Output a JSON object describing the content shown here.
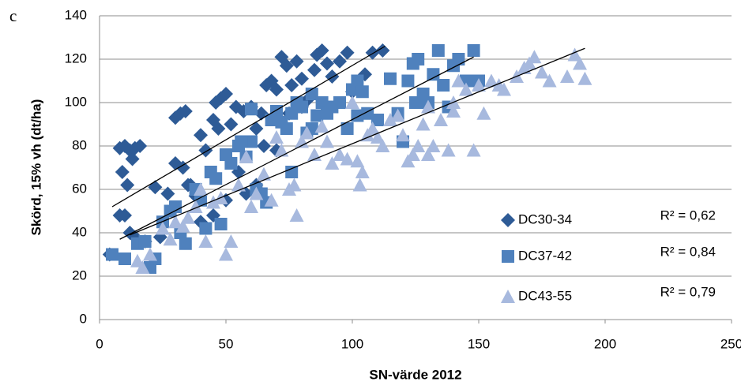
{
  "chart_data": {
    "type": "scatter",
    "panel_label": "c",
    "x_label": "SN-värde 2012",
    "y_label": "Skörd, 15% vh (dt/ha)",
    "xlim": [
      0,
      250
    ],
    "xticks": [
      0,
      50,
      100,
      150,
      200,
      250
    ],
    "ylim": [
      0,
      140
    ],
    "yticks": [
      0,
      20,
      40,
      60,
      80,
      100,
      120,
      140
    ],
    "grid": true,
    "legend": "lower right",
    "series": [
      {
        "name": "DC30-34",
        "color": "#2e5b96",
        "marker": "diamond",
        "r2_label": "R² = 0,62",
        "trend": {
          "x": [
            5,
            113
          ],
          "y": [
            52,
            126
          ]
        },
        "x": [
          4,
          8,
          10,
          8,
          10,
          12,
          14,
          16,
          9,
          11,
          13,
          12,
          14,
          18,
          22,
          24,
          27,
          30,
          32,
          34,
          30,
          33,
          35,
          38,
          40,
          42,
          45,
          46,
          48,
          50,
          47,
          52,
          54,
          57,
          60,
          62,
          64,
          66,
          68,
          70,
          72,
          74,
          76,
          78,
          80,
          82,
          85,
          86,
          88,
          90,
          92,
          95,
          98,
          100,
          105,
          108,
          112,
          58,
          62,
          45,
          50,
          40,
          36,
          55,
          65,
          70,
          75,
          80
        ],
        "values": [
          30,
          48,
          48,
          79,
          80,
          78,
          79,
          80,
          68,
          62,
          74,
          40,
          38,
          36,
          61,
          38,
          58,
          93,
          95,
          96,
          72,
          70,
          62,
          57,
          85,
          78,
          92,
          100,
          102,
          104,
          88,
          90,
          98,
          96,
          98,
          88,
          95,
          108,
          110,
          106,
          121,
          117,
          108,
          119,
          111,
          101,
          115,
          122,
          124,
          118,
          112,
          119,
          123,
          105,
          113,
          123,
          124,
          58,
          62,
          48,
          55,
          45,
          62,
          68,
          80,
          78,
          95,
          98
        ]
      },
      {
        "name": "DC37-42",
        "color": "#4f81bd",
        "marker": "square",
        "r2_label": "R² = 0,84",
        "trend": {
          "x": [
            8,
            148
          ],
          "y": [
            37,
            121
          ]
        },
        "x": [
          5,
          10,
          15,
          18,
          20,
          22,
          25,
          28,
          30,
          32,
          34,
          38,
          40,
          42,
          44,
          46,
          48,
          50,
          52,
          55,
          58,
          60,
          62,
          64,
          66,
          68,
          70,
          72,
          74,
          76,
          78,
          80,
          82,
          84,
          86,
          88,
          90,
          92,
          95,
          98,
          100,
          102,
          104,
          106,
          110,
          115,
          118,
          120,
          122,
          124,
          126,
          128,
          130,
          132,
          134,
          136,
          138,
          140,
          142,
          145,
          148,
          150,
          60,
          56,
          76,
          84,
          102,
          125
        ],
        "values": [
          30,
          28,
          35,
          36,
          24,
          28,
          45,
          50,
          52,
          40,
          35,
          60,
          55,
          42,
          68,
          65,
          44,
          76,
          72,
          80,
          75,
          82,
          60,
          58,
          54,
          92,
          96,
          91,
          88,
          95,
          100,
          98,
          86,
          104,
          94,
          100,
          95,
          98,
          100,
          88,
          106,
          110,
          105,
          95,
          92,
          111,
          95,
          82,
          110,
          118,
          120,
          104,
          100,
          113,
          124,
          108,
          98,
          117,
          120,
          110,
          124,
          110,
          97,
          82,
          68,
          88,
          94,
          100
        ]
      },
      {
        "name": "DC43-55",
        "color": "#a7b9de",
        "marker": "triangle",
        "r2_label": "R² = 0,79",
        "trend": {
          "x": [
            12,
            192
          ],
          "y": [
            39,
            125
          ]
        },
        "x": [
          15,
          17,
          20,
          25,
          28,
          30,
          33,
          35,
          38,
          40,
          42,
          45,
          48,
          50,
          52,
          55,
          58,
          60,
          62,
          65,
          68,
          70,
          72,
          75,
          77,
          78,
          80,
          82,
          85,
          88,
          90,
          92,
          95,
          98,
          100,
          102,
          103,
          104,
          106,
          108,
          110,
          112,
          115,
          118,
          120,
          122,
          124,
          126,
          128,
          130,
          132,
          135,
          138,
          140,
          142,
          145,
          148,
          150,
          152,
          155,
          158,
          160,
          165,
          168,
          170,
          172,
          175,
          178,
          185,
          188,
          190,
          192,
          130,
          140
        ],
        "values": [
          27,
          24,
          30,
          42,
          37,
          45,
          43,
          47,
          52,
          60,
          36,
          54,
          56,
          30,
          36,
          62,
          75,
          52,
          58,
          67,
          55,
          84,
          78,
          60,
          62,
          48,
          82,
          86,
          76,
          89,
          82,
          72,
          76,
          74,
          100,
          73,
          62,
          68,
          85,
          88,
          84,
          80,
          92,
          94,
          85,
          73,
          76,
          80,
          90,
          76,
          80,
          92,
          78,
          100,
          110,
          106,
          78,
          108,
          95,
          110,
          108,
          106,
          112,
          116,
          118,
          121,
          114,
          110,
          112,
          122,
          118,
          111,
          98,
          96
        ]
      }
    ]
  }
}
